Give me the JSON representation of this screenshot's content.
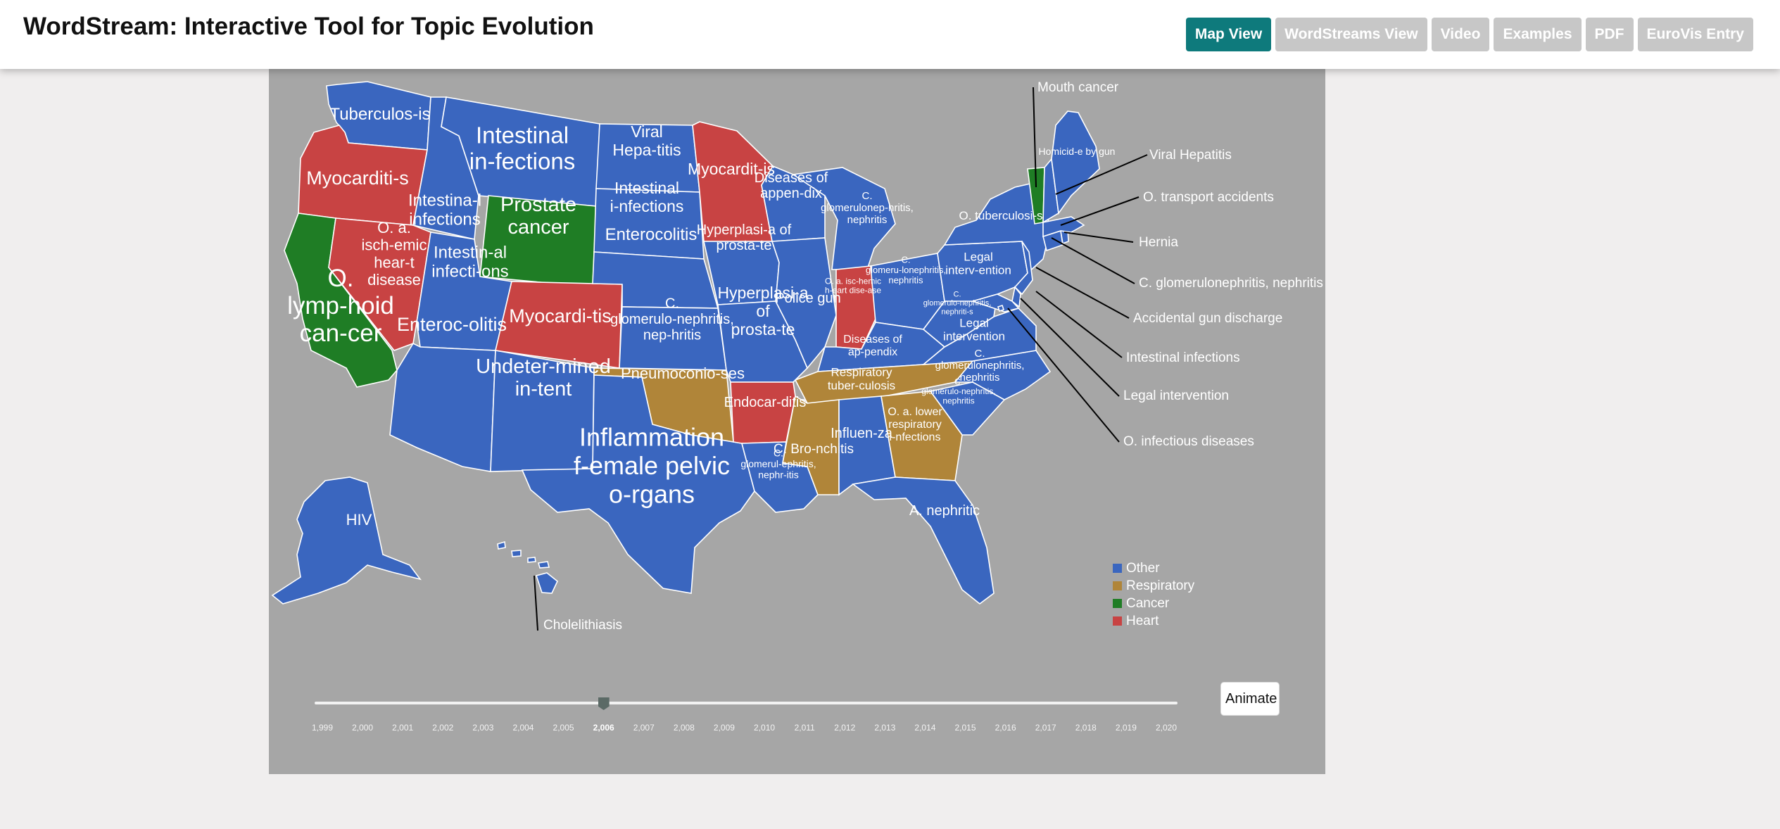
{
  "header": {
    "title": "WordStream: Interactive Tool for Topic Evolution",
    "nav": [
      {
        "label": "Map View",
        "active": true
      },
      {
        "label": "WordStreams View",
        "active": false
      },
      {
        "label": "Video",
        "active": false
      },
      {
        "label": "Examples",
        "active": false
      },
      {
        "label": "PDF",
        "active": false
      },
      {
        "label": "EuroVis Entry",
        "active": false
      }
    ]
  },
  "colors": {
    "Other": "#3a66bf",
    "Respiratory": "#b08539",
    "Cancer": "#1f7d25",
    "Heart": "#c84343",
    "panel_bg": "#a6a6a6",
    "accent": "#0e7a7c"
  },
  "legend": [
    {
      "label": "Other",
      "category": "Other"
    },
    {
      "label": "Respiratory",
      "category": "Respiratory"
    },
    {
      "label": "Cancer",
      "category": "Cancer"
    },
    {
      "label": "Heart",
      "category": "Heart"
    }
  ],
  "states": {
    "WA": {
      "label": "Tuberculos-is",
      "category": "Other"
    },
    "OR": {
      "label": "Myocarditi-s",
      "category": "Heart"
    },
    "CA": {
      "label": "O. lymp-hoid can-cer",
      "category": "Cancer"
    },
    "NV": {
      "label": "O. a. isch-emic hear-t disease",
      "category": "Heart"
    },
    "ID": {
      "label": "Intestina-l infections",
      "category": "Other"
    },
    "MT": {
      "label": "Intestinal in-fections",
      "category": "Other"
    },
    "WY": {
      "label": "Prostate cancer",
      "category": "Cancer"
    },
    "UT": {
      "label": "Intestin-al infecti-ons",
      "category": "Other"
    },
    "AZ": {
      "label": "Enteroc-olitis",
      "category": "Other"
    },
    "CO": {
      "label": "Myocardi-tis",
      "category": "Heart"
    },
    "NM": {
      "label": "Undeter-mined in-tent",
      "category": "Other"
    },
    "ND": {
      "label": "Viral Hepa-titis",
      "category": "Other"
    },
    "SD": {
      "label": "Intestinal i-nfections",
      "category": "Other"
    },
    "NE": {
      "label": "Enterocolitis",
      "category": "Other"
    },
    "KS": {
      "label": "C. glomerulo-nephritis, nep-hritis",
      "category": "Other"
    },
    "OK": {
      "label": "Pneumoconio-ses",
      "category": "Respiratory"
    },
    "TX": {
      "label": "Inflammation f-emale pelvic o-rgans",
      "category": "Other"
    },
    "MN": {
      "label": "Myocardit-is",
      "category": "Heart"
    },
    "IA": {
      "label": "Hyperplasi-a of prosta-te",
      "category": "Other"
    },
    "MO": {
      "label": "Hyperplasi-a of prosta-te",
      "category": "Other"
    },
    "AR": {
      "label": "Endocar-ditis",
      "category": "Heart"
    },
    "LA": {
      "label": "C. glomerul-ephritis, nephr-itis",
      "category": "Other"
    },
    "WI": {
      "label": "Diseases of appen-dix",
      "category": "Other"
    },
    "IL": {
      "label": "Police gun",
      "category": "Other"
    },
    "MI": {
      "label": "C. glomerulonep-hritis, nephritis",
      "category": "Other"
    },
    "IN": {
      "label": "O. a. isc-hemic h-eart dise-ase",
      "category": "Heart"
    },
    "OH": {
      "label": "C. glomeru-lonephritis, nephritis",
      "category": "Other"
    },
    "KY": {
      "label": "Diseases of ap-pendix",
      "category": "Other"
    },
    "TN": {
      "label": "Respiratory tuber-culosis",
      "category": "Respiratory"
    },
    "MS": {
      "label": "C. Bro-nchitis",
      "category": "Respiratory"
    },
    "AL": {
      "label": "Influen-za",
      "category": "Other"
    },
    "GA": {
      "label": "O. a. lower respiratory i-nfections",
      "category": "Respiratory"
    },
    "FL": {
      "label": "A. nephritic",
      "category": "Other"
    },
    "SC": {
      "label": "C. glomerulo-nephritis, nephritis",
      "category": "Other"
    },
    "NC": {
      "label": "C. glomerulonephritis, nephritis",
      "category": "Other"
    },
    "VA": {
      "label": "Legal intervention",
      "category": "Other"
    },
    "WV": {
      "label": "C. glomerulo-nephritis, nephriti-s",
      "category": "Other"
    },
    "PA": {
      "label": "Legal interv-ention",
      "category": "Other"
    },
    "NY": {
      "label": "O. tuberculosi-s",
      "category": "Other"
    },
    "ME": {
      "label": "Homicid-e by gun",
      "category": "Other"
    },
    "VT": {
      "label": "",
      "category": "Cancer"
    },
    "NH": {
      "label": "",
      "category": "Other"
    },
    "MA": {
      "label": "",
      "category": "Other"
    },
    "RI": {
      "label": "",
      "category": "Other"
    },
    "CT": {
      "label": "",
      "category": "Other"
    },
    "NJ": {
      "label": "",
      "category": "Other"
    },
    "DE": {
      "label": "",
      "category": "Other"
    },
    "MD": {
      "label": "",
      "category": "Other"
    },
    "DC": {
      "label": "",
      "category": "Other"
    },
    "AK": {
      "label": "HIV",
      "category": "Other"
    },
    "HI": {
      "label": "",
      "category": "Other"
    }
  },
  "callouts": {
    "mouth_cancer": "Mouth cancer",
    "viral_hepatitis": "Viral Hepatitis",
    "transport_accidents": "O. transport accidents",
    "hernia": "Hernia",
    "glomerulonephritis": "C. glomerulonephritis, nephritis",
    "accidental_gun": "Accidental gun discharge",
    "intestinal_infections": "Intestinal infections",
    "legal_intervention": "Legal intervention",
    "infectious_diseases": "O. infectious diseases",
    "cholelithiasis": "Cholelithiasis"
  },
  "timeline": {
    "years": [
      "1,999",
      "2,000",
      "2,001",
      "2,002",
      "2,003",
      "2,004",
      "2,005",
      "2,006",
      "2,007",
      "2,008",
      "2,009",
      "2,010",
      "2,011",
      "2,012",
      "2,013",
      "2,014",
      "2,015",
      "2,016",
      "2,017",
      "2,018",
      "2,019",
      "2,020"
    ],
    "current": "2,006",
    "animate_label": "Animate"
  }
}
